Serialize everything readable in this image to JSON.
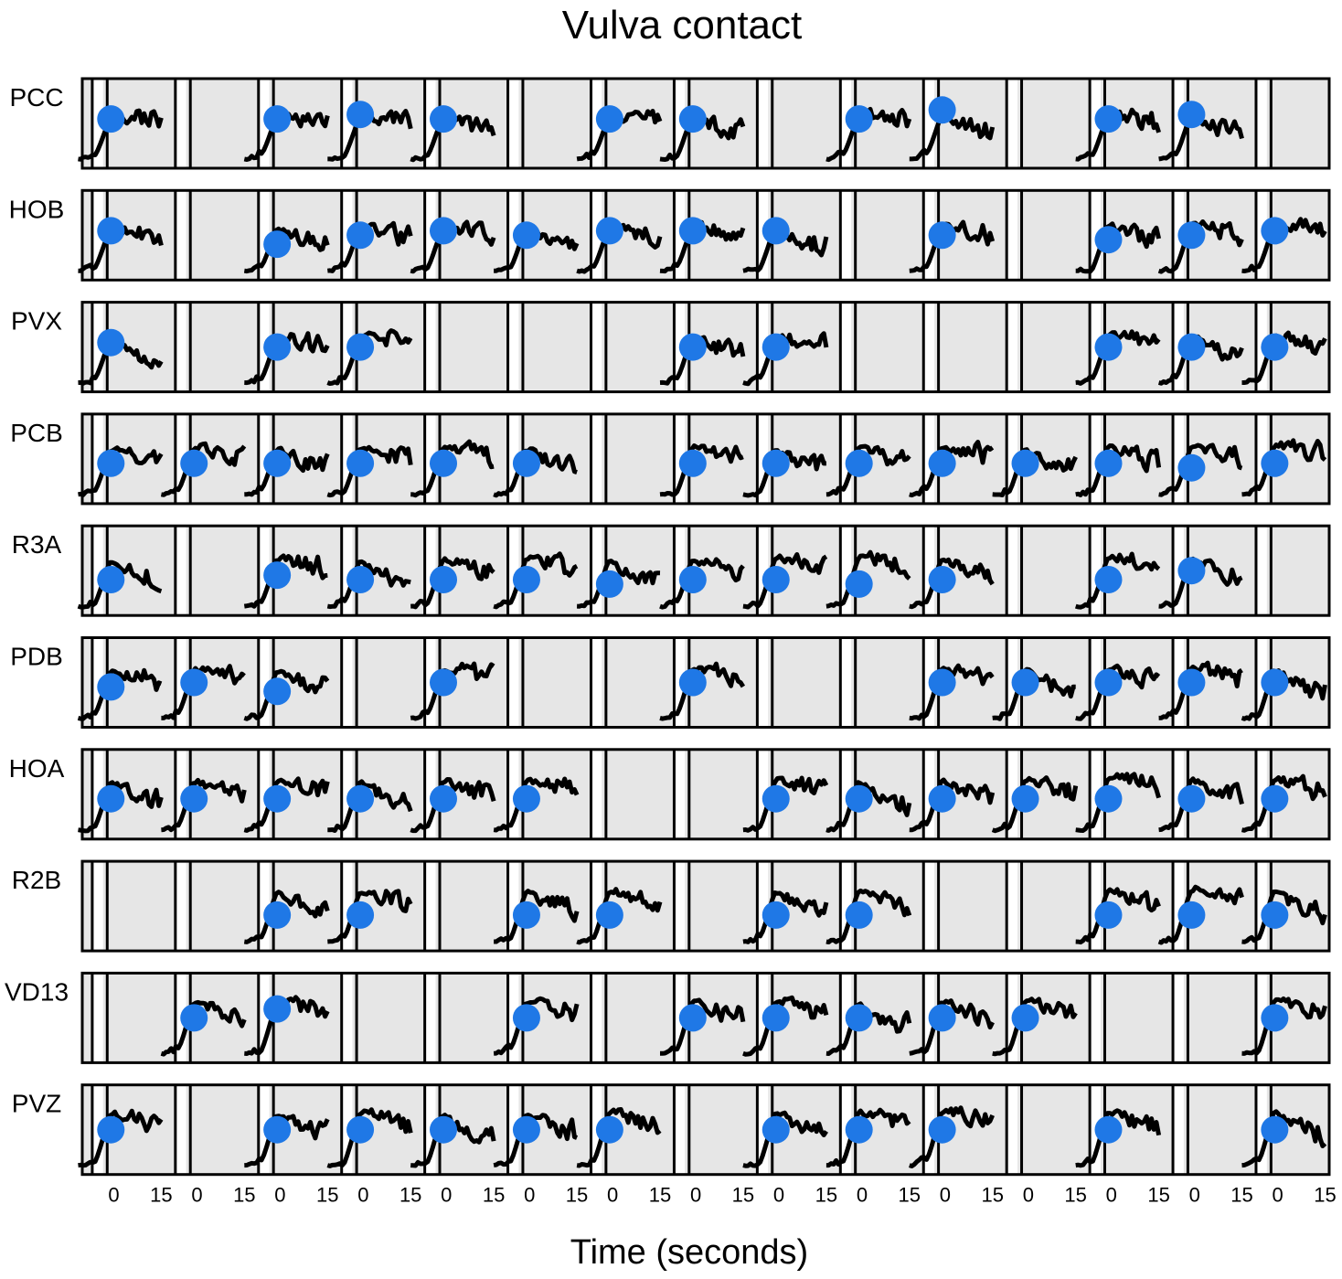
{
  "chart_data": {
    "type": "line",
    "title": "Vulva contact",
    "xlabel": "Time (seconds)",
    "ylabel": "",
    "x_ticks": [
      "0",
      "15"
    ],
    "xlim": [
      -5,
      15
    ],
    "ylim": [
      0,
      1
    ],
    "grid": false,
    "legend": "none",
    "colors": {
      "background": "#e6e6e6",
      "trace": "#000000",
      "marker": "#1f78e6",
      "separator": "#ffffff"
    },
    "columns": 15,
    "rows": [
      {
        "label": "PCC",
        "traces": [
          1,
          0,
          1,
          1,
          1,
          0,
          1,
          1,
          0,
          1,
          1,
          0,
          1,
          1,
          0
        ],
        "markers": [
          0.55,
          0,
          0.55,
          0.6,
          0.55,
          0,
          0.55,
          0.55,
          0,
          0.55,
          0.65,
          0,
          0.55,
          0.6,
          0
        ]
      },
      {
        "label": "HOB",
        "traces": [
          1,
          0,
          1,
          1,
          1,
          1,
          1,
          1,
          1,
          0,
          1,
          0,
          1,
          1,
          1
        ],
        "markers": [
          0.55,
          0,
          0.4,
          0.5,
          0.55,
          0.5,
          0.55,
          0.55,
          0.55,
          0,
          0.5,
          0,
          0.45,
          0.5,
          0.55
        ]
      },
      {
        "label": "PVX",
        "traces": [
          1,
          0,
          1,
          1,
          0,
          0,
          0,
          1,
          1,
          0,
          0,
          0,
          1,
          1,
          1
        ],
        "markers": [
          0.55,
          0,
          0.5,
          0.5,
          0,
          0,
          0,
          0.5,
          0.5,
          0,
          0,
          0,
          0.5,
          0.5,
          0.5
        ]
      },
      {
        "label": "PCB",
        "traces": [
          1,
          1,
          1,
          1,
          1,
          1,
          0,
          1,
          1,
          1,
          1,
          1,
          1,
          1,
          1
        ],
        "markers": [
          0.45,
          0.45,
          0.45,
          0.45,
          0.45,
          0.45,
          0,
          0.45,
          0.45,
          0.45,
          0.45,
          0.45,
          0.45,
          0.4,
          0.45
        ]
      },
      {
        "label": "R3A",
        "traces": [
          1,
          0,
          1,
          1,
          1,
          1,
          1,
          1,
          1,
          1,
          1,
          0,
          1,
          1,
          0
        ],
        "markers": [
          0.4,
          0,
          0.45,
          0.4,
          0.4,
          0.4,
          0.35,
          0.4,
          0.4,
          0.35,
          0.4,
          0,
          0.4,
          0.5,
          0
        ]
      },
      {
        "label": "PDB",
        "traces": [
          1,
          1,
          1,
          0,
          1,
          0,
          0,
          1,
          0,
          0,
          1,
          1,
          1,
          1,
          1
        ],
        "markers": [
          0.45,
          0.5,
          0.4,
          0,
          0.5,
          0,
          0,
          0.5,
          0,
          0,
          0.5,
          0.5,
          0.5,
          0.5,
          0.5
        ]
      },
      {
        "label": "HOA",
        "traces": [
          1,
          1,
          1,
          1,
          1,
          1,
          0,
          0,
          1,
          1,
          1,
          1,
          1,
          1,
          1
        ],
        "markers": [
          0.45,
          0.45,
          0.45,
          0.45,
          0.45,
          0.45,
          0,
          0,
          0.45,
          0.45,
          0.45,
          0.45,
          0.45,
          0.45,
          0.45
        ]
      },
      {
        "label": "R2B",
        "traces": [
          0,
          0,
          1,
          1,
          0,
          1,
          1,
          0,
          1,
          1,
          0,
          0,
          1,
          1,
          1
        ],
        "markers": [
          0,
          0,
          0.4,
          0.4,
          0,
          0.4,
          0.4,
          0,
          0.4,
          0.4,
          0,
          0,
          0.4,
          0.4,
          0.4
        ]
      },
      {
        "label": "VD13",
        "traces": [
          0,
          1,
          1,
          0,
          0,
          1,
          0,
          1,
          1,
          1,
          1,
          1,
          0,
          0,
          1
        ],
        "markers": [
          0,
          0.5,
          0.6,
          0,
          0,
          0.5,
          0,
          0.5,
          0.5,
          0.5,
          0.5,
          0.5,
          0,
          0,
          0.5
        ]
      },
      {
        "label": "PVZ",
        "traces": [
          1,
          0,
          1,
          1,
          1,
          1,
          1,
          0,
          1,
          1,
          1,
          0,
          1,
          0,
          1
        ],
        "markers": [
          0.5,
          0,
          0.5,
          0.5,
          0.5,
          0.5,
          0.5,
          0,
          0.5,
          0.5,
          0.5,
          0,
          0.5,
          0,
          0.5
        ]
      }
    ]
  }
}
